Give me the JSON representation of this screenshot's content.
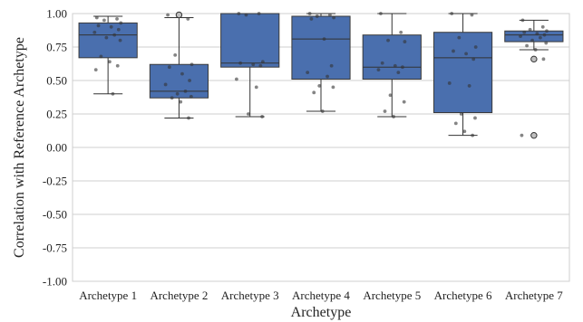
{
  "chart_data": {
    "type": "box",
    "xlabel": "Archetype",
    "ylabel": "Correlation with Reference Archetype",
    "ylim": [
      -1.0,
      1.0
    ],
    "yticks": [
      1.0,
      0.75,
      0.5,
      0.25,
      0.0,
      -0.25,
      -0.5,
      -0.75,
      -1.0
    ],
    "ytick_labels": [
      "1.00",
      "0.75",
      "0.50",
      "0.25",
      "0.00",
      "-0.25",
      "-0.50",
      "-0.75",
      "-1.00"
    ],
    "grid": "horizontal",
    "colors": {
      "box_fill": "#4a6fae",
      "box_edge": "#3a3a3a",
      "median": "#333333",
      "whisker": "#333333",
      "point": "#333333",
      "outlier_face": "#bfbfbf",
      "grid": "#cfcfcf"
    },
    "categories": [
      "Archetype 1",
      "Archetype 2",
      "Archetype 3",
      "Archetype 4",
      "Archetype 5",
      "Archetype 6",
      "Archetype 7"
    ],
    "boxes": [
      {
        "name": "Archetype 1",
        "whislo": 0.4,
        "q1": 0.67,
        "med": 0.84,
        "q3": 0.93,
        "whishi": 0.98,
        "fliers": []
      },
      {
        "name": "Archetype 2",
        "whislo": 0.22,
        "q1": 0.37,
        "med": 0.42,
        "q3": 0.62,
        "whishi": 0.97,
        "fliers": [
          0.99
        ]
      },
      {
        "name": "Archetype 3",
        "whislo": 0.23,
        "q1": 0.6,
        "med": 0.63,
        "q3": 1.0,
        "whishi": 1.0,
        "fliers": []
      },
      {
        "name": "Archetype 4",
        "whislo": 0.27,
        "q1": 0.51,
        "med": 0.81,
        "q3": 0.98,
        "whishi": 1.0,
        "fliers": []
      },
      {
        "name": "Archetype 5",
        "whislo": 0.23,
        "q1": 0.51,
        "med": 0.6,
        "q3": 0.84,
        "whishi": 1.0,
        "fliers": []
      },
      {
        "name": "Archetype 6",
        "whislo": 0.09,
        "q1": 0.26,
        "med": 0.67,
        "q3": 0.86,
        "whishi": 1.0,
        "fliers": []
      },
      {
        "name": "Archetype 7",
        "whislo": 0.73,
        "q1": 0.79,
        "med": 0.84,
        "q3": 0.87,
        "whishi": 0.95,
        "fliers": [
          0.66,
          0.09
        ]
      }
    ],
    "strip_points": [
      [
        0.97,
        0.96,
        0.95,
        0.93,
        0.91,
        0.9,
        0.88,
        0.86,
        0.84,
        0.82,
        0.8,
        0.68,
        0.64,
        0.61,
        0.58,
        0.4
      ],
      [
        0.99,
        0.96,
        0.69,
        0.62,
        0.6,
        0.55,
        0.5,
        0.47,
        0.42,
        0.4,
        0.38,
        0.37,
        0.34,
        0.22
      ],
      [
        1.0,
        1.0,
        0.99,
        0.64,
        0.63,
        0.62,
        0.61,
        0.51,
        0.45,
        0.25,
        0.23
      ],
      [
        1.0,
        0.99,
        0.98,
        0.97,
        0.96,
        0.81,
        0.61,
        0.56,
        0.53,
        0.46,
        0.45,
        0.41,
        0.27
      ],
      [
        1.0,
        0.86,
        0.8,
        0.79,
        0.63,
        0.61,
        0.6,
        0.58,
        0.56,
        0.39,
        0.34,
        0.27,
        0.23
      ],
      [
        1.0,
        0.99,
        0.82,
        0.75,
        0.72,
        0.7,
        0.66,
        0.48,
        0.46,
        0.25,
        0.22,
        0.18,
        0.12,
        0.09
      ],
      [
        0.95,
        0.9,
        0.88,
        0.87,
        0.86,
        0.85,
        0.84,
        0.83,
        0.82,
        0.8,
        0.78,
        0.76,
        0.73,
        0.66,
        0.09
      ]
    ]
  }
}
